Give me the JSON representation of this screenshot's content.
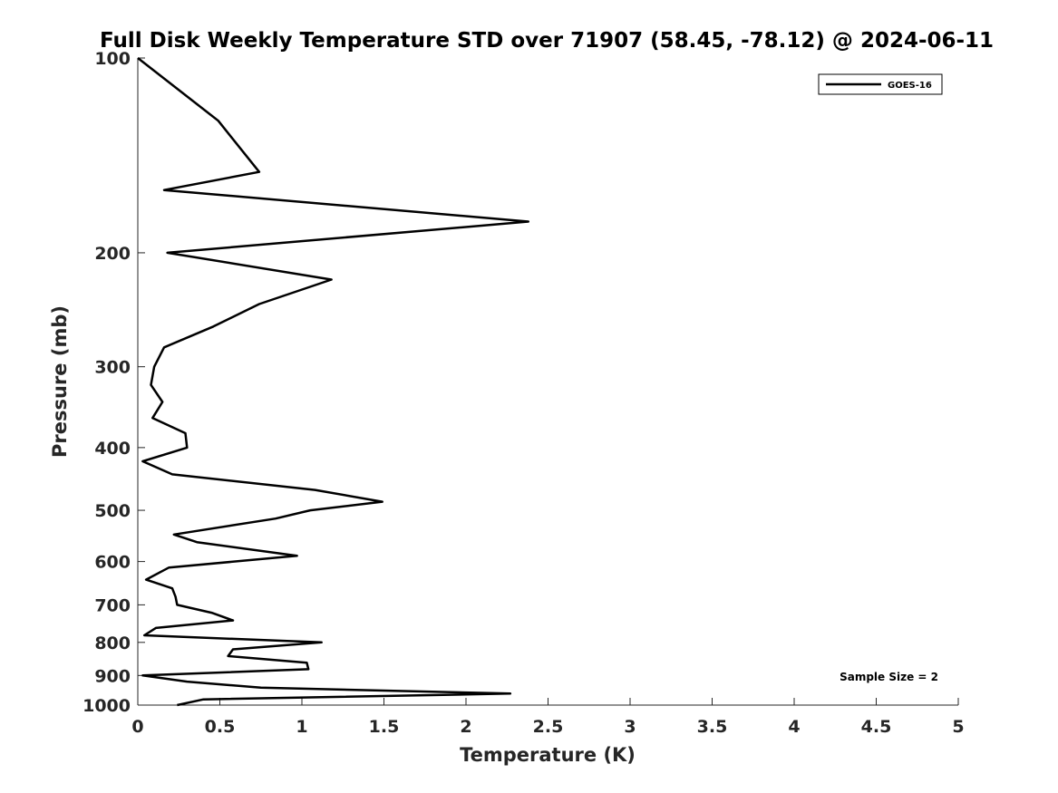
{
  "chart_data": {
    "type": "line",
    "title": "Full Disk Weekly Temperature STD over 71907 (58.45, -78.12) @ 2024-06-11",
    "xlabel": "Temperature (K)",
    "ylabel": "Pressure (mb)",
    "xlim": [
      0,
      5
    ],
    "ylim": [
      100,
      1000
    ],
    "yscale": "log",
    "y_reversed": true,
    "x_ticks": [
      0,
      0.5,
      1,
      1.5,
      2,
      2.5,
      3,
      3.5,
      4,
      4.5,
      5
    ],
    "x_tick_labels": [
      "0",
      "0.5",
      "1",
      "1.5",
      "2",
      "2.5",
      "3",
      "3.5",
      "4",
      "4.5",
      "5"
    ],
    "y_ticks": [
      100,
      200,
      300,
      400,
      500,
      600,
      700,
      800,
      900,
      1000
    ],
    "y_tick_labels": [
      "100",
      "200",
      "300",
      "400",
      "500",
      "600",
      "700",
      "800",
      "900",
      "1000"
    ],
    "grid": false,
    "legend_position": "top-right",
    "annotation": "Sample Size = 2",
    "series": [
      {
        "name": "GOES-16",
        "color": "#000000",
        "points": [
          [
            0.0,
            100
          ],
          [
            0.49,
            125
          ],
          [
            0.74,
            150
          ],
          [
            0.16,
            160
          ],
          [
            2.38,
            179
          ],
          [
            0.18,
            200
          ],
          [
            1.18,
            220
          ],
          [
            0.74,
            240
          ],
          [
            0.46,
            260
          ],
          [
            0.16,
            280
          ],
          [
            0.1,
            300
          ],
          [
            0.08,
            320
          ],
          [
            0.15,
            340
          ],
          [
            0.09,
            360
          ],
          [
            0.29,
            380
          ],
          [
            0.3,
            400
          ],
          [
            0.03,
            420
          ],
          [
            0.21,
            440
          ],
          [
            1.08,
            465
          ],
          [
            1.49,
            485
          ],
          [
            1.05,
            500
          ],
          [
            0.84,
            515
          ],
          [
            0.22,
            545
          ],
          [
            0.36,
            560
          ],
          [
            0.97,
            588
          ],
          [
            0.19,
            613
          ],
          [
            0.05,
            640
          ],
          [
            0.21,
            660
          ],
          [
            0.23,
            680
          ],
          [
            0.24,
            700
          ],
          [
            0.45,
            720
          ],
          [
            0.58,
            740
          ],
          [
            0.11,
            760
          ],
          [
            0.04,
            780
          ],
          [
            1.12,
            800
          ],
          [
            0.58,
            820
          ],
          [
            0.55,
            840
          ],
          [
            1.03,
            860
          ],
          [
            1.04,
            880
          ],
          [
            0.03,
            900
          ],
          [
            0.3,
            920
          ],
          [
            0.75,
            940
          ],
          [
            2.27,
            960
          ],
          [
            0.4,
            980
          ],
          [
            0.24,
            1000
          ]
        ]
      }
    ]
  }
}
